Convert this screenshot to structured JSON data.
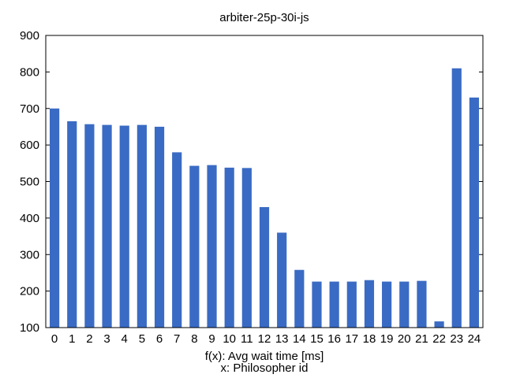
{
  "chart_data": {
    "type": "bar",
    "title": "arbiter-25p-30i-js",
    "xlabel_lines": [
      "f(x): Avg wait time [ms]",
      "x: Philosopher id"
    ],
    "ylabel": "",
    "categories": [
      "0",
      "1",
      "2",
      "3",
      "4",
      "5",
      "6",
      "7",
      "8",
      "9",
      "10",
      "11",
      "12",
      "13",
      "14",
      "15",
      "16",
      "17",
      "18",
      "19",
      "20",
      "21",
      "22",
      "23",
      "24"
    ],
    "values": [
      700,
      665,
      657,
      655,
      653,
      655,
      650,
      580,
      543,
      545,
      538,
      537,
      430,
      360,
      258,
      226,
      226,
      226,
      230,
      226,
      226,
      228,
      117,
      810,
      730
    ],
    "ylim": [
      100,
      900
    ],
    "yticks": [
      100,
      200,
      300,
      400,
      500,
      600,
      700,
      800,
      900
    ],
    "grid": false,
    "legend": "none",
    "bar_color": "#3a6bc4"
  }
}
